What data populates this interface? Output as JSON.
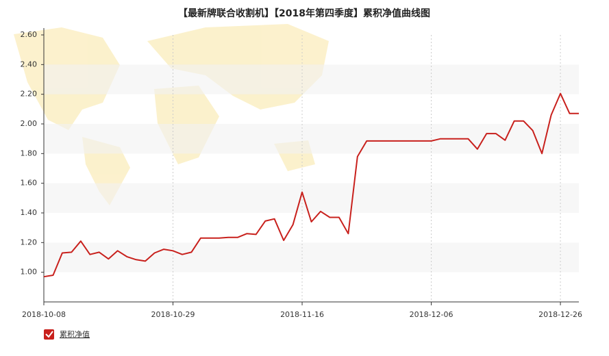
{
  "chart_data": {
    "type": "line",
    "title": "【最新牌联合收割机】【2018年第四季度】累积净值曲线图",
    "categories": [
      "2018-10-08",
      null,
      null,
      null,
      null,
      null,
      null,
      null,
      null,
      null,
      null,
      null,
      null,
      null,
      "2018-10-29",
      null,
      null,
      null,
      null,
      null,
      null,
      null,
      null,
      null,
      null,
      null,
      null,
      null,
      "2018-11-16",
      null,
      null,
      null,
      null,
      null,
      null,
      null,
      null,
      null,
      null,
      null,
      null,
      null,
      "2018-12-06",
      null,
      null,
      null,
      null,
      null,
      null,
      null,
      null,
      null,
      null,
      null,
      null,
      null,
      "2018-12-26",
      null,
      null
    ],
    "series": [
      {
        "name": "累积净值",
        "color": "#c8201c",
        "values": [
          0.97,
          0.98,
          1.13,
          1.135,
          1.21,
          1.12,
          1.135,
          1.09,
          1.145,
          1.105,
          1.085,
          1.075,
          1.13,
          1.155,
          1.145,
          1.12,
          1.135,
          1.23,
          1.23,
          1.23,
          1.235,
          1.235,
          1.26,
          1.255,
          1.345,
          1.36,
          1.215,
          1.32,
          1.54,
          1.34,
          1.41,
          1.37,
          1.37,
          1.26,
          1.78,
          1.885,
          1.885,
          1.885,
          1.885,
          1.885,
          1.885,
          1.885,
          1.885,
          1.9,
          1.9,
          1.9,
          1.9,
          1.83,
          1.935,
          1.935,
          1.89,
          2.02,
          2.02,
          1.955,
          1.8,
          2.06,
          2.205,
          2.07,
          2.07
        ]
      }
    ],
    "ylim": [
      0.8,
      2.6
    ],
    "yticks": [
      {
        "value": 1,
        "label": "1.00"
      },
      {
        "value": 1.2,
        "label": "1.20"
      },
      {
        "value": 1.4,
        "label": "1.40"
      },
      {
        "value": 1.6,
        "label": "1.60"
      },
      {
        "value": 1.8,
        "label": "1.80"
      },
      {
        "value": 2,
        "label": "2.00"
      },
      {
        "value": 2.2,
        "label": "2.20"
      },
      {
        "value": 2.4,
        "label": "2.40"
      },
      {
        "value": 2.6,
        "label": "2.60"
      }
    ],
    "grid": true
  }
}
